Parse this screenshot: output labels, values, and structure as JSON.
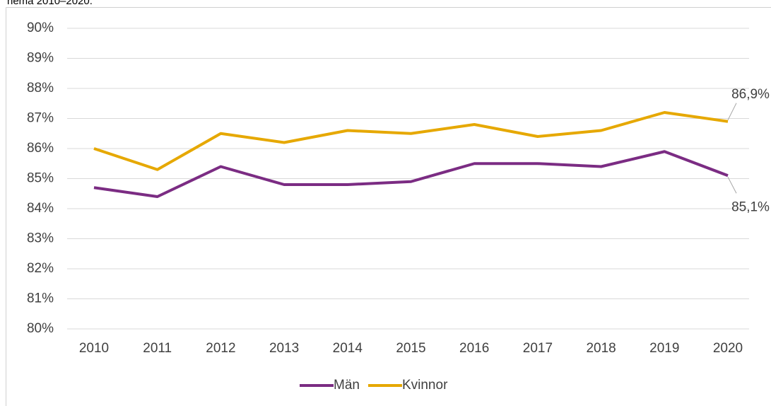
{
  "chart_data": {
    "type": "line",
    "title": "hema 2010–2020.",
    "categories": [
      "2010",
      "2011",
      "2012",
      "2013",
      "2014",
      "2015",
      "2016",
      "2017",
      "2018",
      "2019",
      "2020"
    ],
    "series": [
      {
        "name": "Män",
        "color": "#7b2c83",
        "values": [
          84.7,
          84.4,
          85.4,
          84.8,
          84.8,
          84.9,
          85.5,
          85.5,
          85.4,
          85.9,
          85.1
        ],
        "value_labels": [
          null,
          null,
          null,
          null,
          null,
          null,
          null,
          null,
          null,
          null,
          "85,1%"
        ]
      },
      {
        "name": "Kvinnor",
        "color": "#e6a800",
        "values": [
          86.0,
          85.3,
          86.5,
          86.2,
          86.6,
          86.5,
          86.8,
          86.4,
          86.6,
          87.2,
          86.9
        ],
        "value_labels": [
          null,
          null,
          null,
          null,
          null,
          null,
          null,
          null,
          null,
          null,
          "86,9%"
        ]
      }
    ],
    "ylim": [
      80,
      90
    ],
    "yticks": [
      {
        "value": 80,
        "label": "80%"
      },
      {
        "value": 81,
        "label": "81%"
      },
      {
        "value": 82,
        "label": "82%"
      },
      {
        "value": 83,
        "label": "83%"
      },
      {
        "value": 84,
        "label": "84%"
      },
      {
        "value": 85,
        "label": "85%"
      },
      {
        "value": 86,
        "label": "86%"
      },
      {
        "value": 87,
        "label": "87%"
      },
      {
        "value": 88,
        "label": "88%"
      },
      {
        "value": 89,
        "label": "89%"
      },
      {
        "value": 90,
        "label": "90%"
      }
    ],
    "grid": true,
    "legend": "bottom"
  }
}
